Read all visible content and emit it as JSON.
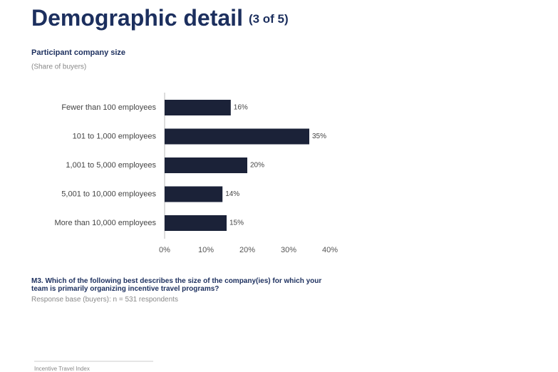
{
  "header": {
    "title": "Demographic detail",
    "page": "(3 of 5)"
  },
  "chart_data": {
    "type": "bar",
    "orientation": "horizontal",
    "title": "Participant company size",
    "subtitle": "(Share of buyers)",
    "categories": [
      "Fewer than 100 employees",
      "101 to 1,000 employees",
      "1,001 to 5,000 employees",
      "5,001 to 10,000 employees",
      "More than 10,000 employees"
    ],
    "values": [
      16,
      35,
      20,
      14,
      15
    ],
    "value_labels": [
      "16%",
      "35%",
      "20%",
      "14%",
      "15%"
    ],
    "color": "#1b2238",
    "xlim": [
      0,
      40
    ],
    "xticks": [
      {
        "value": 0,
        "label": "0%"
      },
      {
        "value": 10,
        "label": "10%"
      },
      {
        "value": 20,
        "label": "20%"
      },
      {
        "value": 30,
        "label": "30%"
      },
      {
        "value": 40,
        "label": "40%"
      }
    ],
    "grid": false
  },
  "notes": {
    "question": "M3. Which of the following best describes the size of the company(ies) for which your team is primarily organizing incentive travel programs?",
    "base": "Response base (buyers): n = 531 respondents"
  },
  "footer": "Incentive Travel Index"
}
